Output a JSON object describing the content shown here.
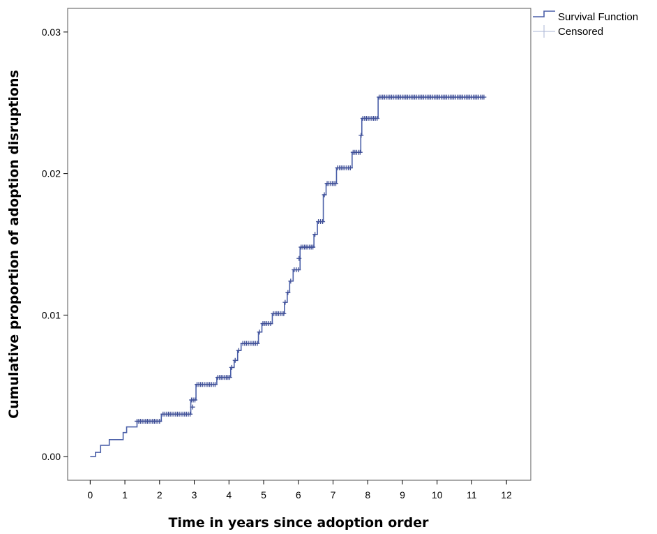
{
  "chart_data": {
    "type": "line",
    "xlabel": "Time in years since adoption order",
    "ylabel": "Cumulative proportion of adoption disruptions",
    "xlim": [
      -0.65,
      12.7
    ],
    "ylim": [
      -0.00167,
      0.03167
    ],
    "x_ticks": [
      0,
      1,
      2,
      3,
      4,
      5,
      6,
      7,
      8,
      9,
      10,
      11,
      12
    ],
    "x_tick_labels": [
      "0",
      "1",
      "2",
      "3",
      "4",
      "5",
      "6",
      "7",
      "8",
      "9",
      "10",
      "11",
      "12"
    ],
    "y_ticks": [
      0,
      0.01,
      0.02,
      0.03
    ],
    "y_tick_labels": [
      "0.00",
      "0.01",
      "0.02",
      "0.03"
    ],
    "grid": false,
    "legend": {
      "placement": "top-right-outside",
      "entries": [
        {
          "label": "Survival Function",
          "symbol": "step-line"
        },
        {
          "label": "Censored",
          "symbol": "plus"
        }
      ]
    },
    "colors": {
      "series": "#4a5fa8",
      "censor_marker": "#3f4f97"
    },
    "series": [
      {
        "name": "Survival Function",
        "style": "step",
        "points": [
          [
            0.0,
            0.0
          ],
          [
            0.15,
            0.0003
          ],
          [
            0.3,
            0.0008
          ],
          [
            0.55,
            0.0012
          ],
          [
            0.95,
            0.0017
          ],
          [
            1.05,
            0.0021
          ],
          [
            1.35,
            0.0025
          ],
          [
            2.05,
            0.003
          ],
          [
            2.9,
            0.004
          ],
          [
            3.05,
            0.0051
          ],
          [
            3.65,
            0.0056
          ],
          [
            4.05,
            0.0063
          ],
          [
            4.15,
            0.0068
          ],
          [
            4.25,
            0.0075
          ],
          [
            4.35,
            0.008
          ],
          [
            4.85,
            0.0088
          ],
          [
            4.95,
            0.0094
          ],
          [
            5.25,
            0.0101
          ],
          [
            5.6,
            0.0109
          ],
          [
            5.68,
            0.0116
          ],
          [
            5.75,
            0.0124
          ],
          [
            5.85,
            0.0132
          ],
          [
            6.05,
            0.0148
          ],
          [
            6.45,
            0.0157
          ],
          [
            6.55,
            0.0166
          ],
          [
            6.72,
            0.0185
          ],
          [
            6.8,
            0.0193
          ],
          [
            7.1,
            0.0204
          ],
          [
            7.55,
            0.0215
          ],
          [
            7.8,
            0.0227
          ],
          [
            7.83,
            0.0239
          ],
          [
            8.3,
            0.0254
          ],
          [
            11.35,
            0.0254
          ]
        ]
      },
      {
        "name": "Censored",
        "style": "plus-markers",
        "segments": [
          {
            "x_from": 1.35,
            "x_to": 2.0,
            "y": 0.0025,
            "count": 14
          },
          {
            "x_from": 2.1,
            "x_to": 2.88,
            "y": 0.003,
            "count": 16
          },
          {
            "x_from": 2.92,
            "x_to": 3.02,
            "y": 0.004,
            "count": 3
          },
          {
            "x_from": 3.08,
            "x_to": 3.6,
            "y": 0.0051,
            "count": 11
          },
          {
            "x_from": 3.68,
            "x_to": 4.02,
            "y": 0.0056,
            "count": 8
          },
          {
            "x_from": 4.4,
            "x_to": 4.82,
            "y": 0.008,
            "count": 9
          },
          {
            "x_from": 4.98,
            "x_to": 5.2,
            "y": 0.0094,
            "count": 5
          },
          {
            "x_from": 5.28,
            "x_to": 5.58,
            "y": 0.0101,
            "count": 7
          },
          {
            "x_from": 5.88,
            "x_to": 6.0,
            "y": 0.0132,
            "count": 3
          },
          {
            "x_from": 6.08,
            "x_to": 6.42,
            "y": 0.0148,
            "count": 8
          },
          {
            "x_from": 6.58,
            "x_to": 6.7,
            "y": 0.0166,
            "count": 3
          },
          {
            "x_from": 6.83,
            "x_to": 7.08,
            "y": 0.0193,
            "count": 6
          },
          {
            "x_from": 7.13,
            "x_to": 7.5,
            "y": 0.0204,
            "count": 8
          },
          {
            "x_from": 7.58,
            "x_to": 7.78,
            "y": 0.0215,
            "count": 5
          },
          {
            "x_from": 7.86,
            "x_to": 8.27,
            "y": 0.0239,
            "count": 9
          },
          {
            "x_from": 8.33,
            "x_to": 11.35,
            "y": 0.0254,
            "count": 60
          }
        ],
        "points": [
          [
            2.95,
            0.0035
          ],
          [
            4.08,
            0.0063
          ],
          [
            4.18,
            0.0068
          ],
          [
            4.28,
            0.0075
          ],
          [
            4.88,
            0.0088
          ],
          [
            5.62,
            0.0109
          ],
          [
            5.7,
            0.0116
          ],
          [
            5.78,
            0.0124
          ],
          [
            6.02,
            0.014
          ],
          [
            6.48,
            0.0157
          ],
          [
            6.75,
            0.0185
          ],
          [
            7.81,
            0.0227
          ]
        ]
      }
    ]
  }
}
